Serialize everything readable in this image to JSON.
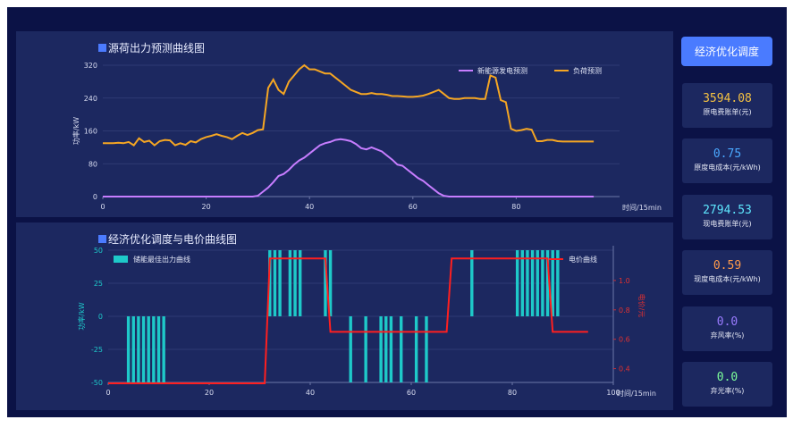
{
  "charts": {
    "top": {
      "title": "源荷出力预测曲线图",
      "ylabel": "功率/kW",
      "xlabel": "时间/15min",
      "legend": [
        "新能源发电预测",
        "负荷预测"
      ]
    },
    "bottom": {
      "title": "经济优化调度与电价曲线图",
      "ylabel": "功率/kW",
      "ylabel_right": "电价/元",
      "xlabel": "时间/15min",
      "legend": [
        "储能最佳出力曲线",
        "电价曲线"
      ]
    }
  },
  "sidebar": {
    "button_label": "经济优化调度",
    "cards": [
      {
        "value": "3594.08",
        "label": "原电费账单(元)",
        "color": "#f5c242"
      },
      {
        "value": "0.75",
        "label": "原度电成本(元/kWh)",
        "color": "#4aa8ff"
      },
      {
        "value": "2794.53",
        "label": "现电费账单(元)",
        "color": "#5ee8ff"
      },
      {
        "value": "0.59",
        "label": "现度电成本(元/kWh)",
        "color": "#ff9a4a"
      },
      {
        "value": "0.0",
        "label": "弃风率(%)",
        "color": "#9a7bff"
      },
      {
        "value": "0.0",
        "label": "弃光率(%)",
        "color": "#7dff9a"
      }
    ]
  },
  "chart_data": [
    {
      "type": "line",
      "title": "源荷出力预测曲线图",
      "xlabel": "时间/15min",
      "ylabel": "功率/kW",
      "xlim": [
        0,
        100
      ],
      "ylim": [
        0,
        320
      ],
      "xticks": [
        0,
        20,
        40,
        60,
        80
      ],
      "yticks": [
        0,
        80,
        160,
        240,
        320
      ],
      "legend_position": "top-right",
      "series": [
        {
          "name": "新能源发电预测",
          "color": "#c77dff",
          "values": [
            0,
            0,
            0,
            0,
            0,
            0,
            0,
            0,
            0,
            0,
            0,
            0,
            0,
            0,
            0,
            0,
            0,
            0,
            0,
            0,
            0,
            0,
            0,
            0,
            0,
            0,
            0,
            0,
            0,
            0,
            2,
            12,
            22,
            35,
            50,
            55,
            65,
            78,
            88,
            95,
            105,
            115,
            125,
            130,
            133,
            138,
            140,
            138,
            135,
            128,
            118,
            115,
            120,
            115,
            110,
            100,
            90,
            78,
            75,
            65,
            55,
            45,
            38,
            28,
            18,
            8,
            2,
            0,
            0,
            0,
            0,
            0,
            0,
            0,
            0,
            0,
            0,
            0,
            0,
            0,
            0,
            0,
            0,
            0,
            0,
            0,
            0,
            0,
            0,
            0,
            0,
            0,
            0,
            0,
            0,
            0
          ]
        },
        {
          "name": "负荷预测",
          "color": "#f5a623",
          "values": [
            130,
            130,
            130,
            131,
            130,
            133,
            125,
            142,
            133,
            136,
            125,
            135,
            138,
            137,
            125,
            130,
            126,
            135,
            132,
            140,
            145,
            148,
            152,
            148,
            145,
            140,
            148,
            155,
            150,
            155,
            162,
            164,
            265,
            285,
            260,
            250,
            280,
            295,
            310,
            320,
            310,
            310,
            305,
            300,
            300,
            290,
            280,
            270,
            260,
            255,
            250,
            250,
            252,
            250,
            250,
            248,
            245,
            245,
            244,
            243,
            243,
            244,
            246,
            250,
            255,
            260,
            250,
            240,
            238,
            238,
            240,
            240,
            240,
            238,
            238,
            295,
            290,
            235,
            230,
            165,
            160,
            162,
            165,
            163,
            135,
            135,
            138,
            138,
            135,
            134,
            134,
            134,
            134,
            134,
            134,
            134
          ]
        }
      ]
    },
    {
      "type": "bar",
      "title": "经济优化调度与电价曲线图",
      "xlabel": "时间/15min",
      "ylabel": "功率/kW",
      "ylabel_right": "电价/元",
      "xlim": [
        0,
        100
      ],
      "ylim": [
        -50,
        50
      ],
      "ylim_right": [
        0.3,
        1.2
      ],
      "xticks": [
        0,
        20,
        40,
        60,
        80,
        100
      ],
      "yticks": [
        -50,
        -25,
        0,
        25,
        50
      ],
      "yticks_right": [
        0.4,
        0.6,
        0.8,
        1.0
      ],
      "legend_position": "top",
      "series": [
        {
          "name": "储能最佳出力曲线",
          "color": "#1ec9c9",
          "values": [
            0,
            0,
            0,
            0,
            -50,
            -50,
            -50,
            -50,
            -50,
            -50,
            -50,
            -50,
            0,
            0,
            0,
            0,
            0,
            0,
            0,
            0,
            0,
            0,
            0,
            0,
            0,
            0,
            0,
            0,
            0,
            0,
            0,
            0,
            50,
            50,
            50,
            0,
            50,
            50,
            50,
            0,
            0,
            0,
            0,
            50,
            50,
            0,
            0,
            0,
            -50,
            0,
            0,
            -50,
            0,
            0,
            -50,
            -50,
            -50,
            0,
            -50,
            0,
            0,
            -50,
            0,
            -50,
            0,
            0,
            0,
            0,
            0,
            0,
            0,
            0,
            50,
            0,
            0,
            0,
            0,
            0,
            0,
            0,
            0,
            50,
            50,
            50,
            50,
            50,
            50,
            50,
            50,
            50,
            0,
            0,
            0,
            0,
            0,
            0,
            0,
            0,
            0,
            0
          ]
        },
        {
          "name": "电价曲线",
          "color": "#ff1f1f",
          "axis": "right",
          "x": [
            0,
            31,
            32,
            43,
            44,
            67,
            68,
            87,
            88,
            95
          ],
          "values": [
            0.3,
            0.3,
            1.15,
            1.15,
            0.65,
            0.65,
            1.15,
            1.15,
            0.65,
            0.65
          ]
        }
      ]
    }
  ]
}
